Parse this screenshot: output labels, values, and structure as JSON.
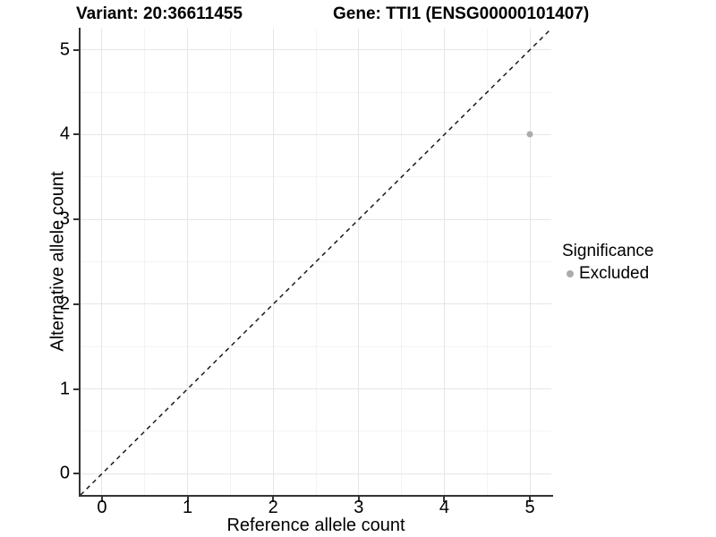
{
  "titles": {
    "left": "Variant: 20:36611455",
    "right": "Gene: TTI1 (ENSG00000101407)"
  },
  "chart_data": {
    "type": "scatter",
    "xlabel": "Reference allele count",
    "ylabel": "Alternative allele count",
    "xlim": [
      -0.25,
      5.25
    ],
    "ylim": [
      -0.25,
      5.25
    ],
    "xticks": [
      0,
      1,
      2,
      3,
      4,
      5
    ],
    "yticks": [
      0,
      1,
      2,
      3,
      4,
      5
    ],
    "minor_xticks": [
      0.5,
      1.5,
      2.5,
      3.5,
      4.5
    ],
    "minor_yticks": [
      0.5,
      1.5,
      2.5,
      3.5,
      4.5
    ],
    "grid": true,
    "points": [
      {
        "x": 5,
        "y": 4,
        "series": "Excluded"
      }
    ],
    "reference_line": {
      "type": "identity",
      "style": "dashed",
      "color": "#1a1a1a"
    },
    "legend": {
      "title": "Significance",
      "position": "right",
      "entries": [
        {
          "label": "Excluded",
          "color": "#ababab"
        }
      ]
    }
  },
  "colors": {
    "axis": "#333333",
    "grid_major": "#e6e6e6",
    "grid_minor": "#f3f3f3",
    "point_excluded": "#ababab",
    "background": "#ffffff"
  }
}
